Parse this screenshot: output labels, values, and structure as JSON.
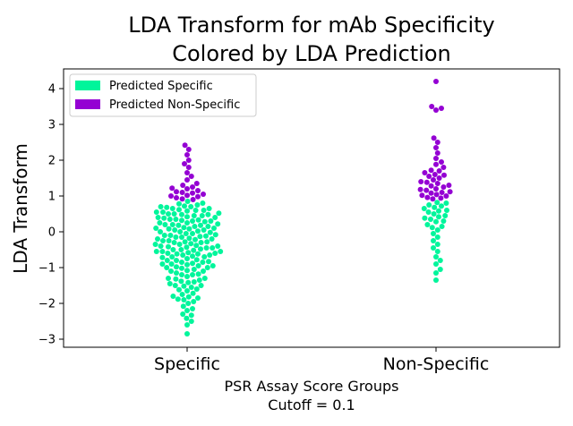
{
  "colors": {
    "specific": "#00f59b",
    "non_specific": "#9400d3",
    "axis": "#000000",
    "background": "#ffffff"
  },
  "chart_data": {
    "type": "scatter",
    "subtype": "swarm",
    "title_lines": [
      "LDA Transform for mAb Specificity",
      "Colored by LDA Prediction"
    ],
    "xlabel_lines": [
      "PSR Assay Score Groups",
      "Cutoff = 0.1"
    ],
    "ylabel": "LDA Transform",
    "categories": [
      "Specific",
      "Non-Specific"
    ],
    "yticks": [
      -3,
      -2,
      -1,
      0,
      1,
      2,
      3,
      4
    ],
    "ylim": [
      -3.2,
      4.5
    ],
    "threshold": 0.9,
    "legend": {
      "placement": "top-left",
      "entries": [
        {
          "label": "Predicted Specific",
          "color": "#00f59b"
        },
        {
          "label": "Predicted Non-Specific",
          "color": "#9400d3"
        }
      ]
    },
    "series": [
      {
        "name": "Specific",
        "values": [
          -2.85,
          -2.6,
          -2.5,
          -2.42,
          -2.33,
          -2.3,
          -2.2,
          -2.15,
          -2.08,
          -2.0,
          -1.95,
          -1.9,
          -1.88,
          -1.85,
          -1.82,
          -1.8,
          -1.72,
          -1.65,
          -1.6,
          -1.55,
          -1.52,
          -1.5,
          -1.45,
          -1.42,
          -1.4,
          -1.35,
          -1.32,
          -1.3,
          -1.25,
          -1.2,
          -1.18,
          -1.15,
          -1.1,
          -1.08,
          -1.05,
          -1.02,
          -1.0,
          -0.98,
          -0.95,
          -0.92,
          -0.9,
          -0.88,
          -0.85,
          -0.83,
          -0.8,
          -0.78,
          -0.75,
          -0.72,
          -0.7,
          -0.68,
          -0.65,
          -0.62,
          -0.6,
          -0.58,
          -0.55,
          -0.52,
          -0.5,
          -0.48,
          -0.45,
          -0.43,
          -0.4,
          -0.38,
          -0.35,
          -0.33,
          -0.3,
          -0.28,
          -0.25,
          -0.22,
          -0.2,
          -0.18,
          -0.15,
          -0.13,
          -0.1,
          -0.08,
          -0.05,
          -0.02,
          0.0,
          0.02,
          0.05,
          0.08,
          0.1,
          0.12,
          0.15,
          0.18,
          0.2,
          0.22,
          0.25,
          0.28,
          0.3,
          0.32,
          0.35,
          0.38,
          0.4,
          0.42,
          0.45,
          0.48,
          0.5,
          0.52,
          0.55,
          0.58,
          0.6,
          0.62,
          0.65,
          0.68,
          0.7,
          0.72,
          0.75,
          0.78,
          0.8,
          -0.65,
          -0.55,
          -0.45,
          -0.35,
          -0.25,
          -0.15,
          -0.05,
          0.05,
          0.15,
          0.25,
          0.35,
          0.45,
          0.55,
          -1.5,
          -1.3,
          -1.1,
          -0.9,
          -0.7,
          -0.5,
          -0.3,
          -0.1,
          0.1,
          0.3,
          0.5,
          0.7,
          -1.2,
          -0.8,
          -0.4,
          0.0,
          0.4,
          -1.0,
          -0.6,
          -0.2,
          0.2,
          0.6,
          -0.85,
          -0.42,
          -0.12,
          0.18,
          0.48,
          -1.75,
          -1.62,
          -1.38,
          -0.95,
          -0.55,
          0.08,
          -0.28,
          -0.62,
          0.33,
          0.65,
          0.85,
          0.9,
          0.95,
          1.0,
          1.05,
          1.1,
          1.15,
          1.2,
          1.25,
          1.3,
          1.35,
          1.45,
          1.55,
          1.65,
          1.8,
          1.9,
          2.0,
          2.15,
          2.3,
          2.42,
          0.92,
          1.02,
          1.12,
          1.22,
          0.98,
          1.08
        ]
      },
      {
        "name": "Non-Specific",
        "values": [
          -1.35,
          -1.15,
          -1.05,
          -0.9,
          -0.8,
          -0.7,
          -0.55,
          -0.45,
          -0.35,
          -0.25,
          -0.15,
          -0.05,
          0.05,
          0.12,
          0.2,
          0.28,
          0.35,
          0.42,
          0.5,
          0.58,
          0.65,
          0.72,
          0.8,
          0.3,
          0.45,
          0.6,
          0.75,
          0.15,
          0.55,
          0.38,
          0.68,
          0.82,
          0.92,
          0.96,
          1.0,
          1.04,
          1.08,
          1.12,
          1.16,
          1.2,
          1.25,
          1.3,
          1.35,
          1.4,
          1.45,
          1.5,
          1.55,
          1.6,
          1.65,
          1.72,
          1.8,
          1.88,
          1.95,
          2.05,
          2.2,
          2.35,
          2.5,
          2.62,
          3.4,
          3.45,
          3.5,
          4.2,
          0.94,
          1.02,
          1.1,
          1.18,
          1.28,
          1.38,
          1.58,
          1.7
        ]
      }
    ]
  }
}
